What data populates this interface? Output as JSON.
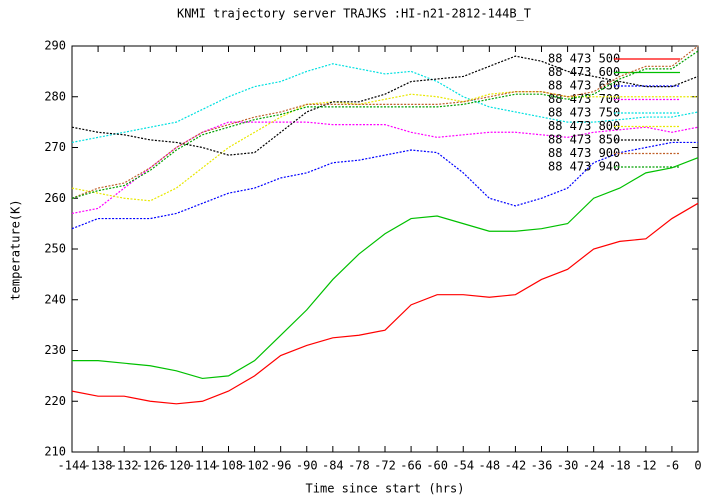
{
  "chart_data": {
    "type": "line",
    "title": "KNMI trajectory server TRAJKS :HI-n21-2812-144B_T",
    "x_label": "Time since start (hrs)",
    "y_label": "temperature(K)",
    "x": [
      -144,
      -138,
      -132,
      -126,
      -120,
      -114,
      -108,
      -102,
      -96,
      -90,
      -84,
      -78,
      -72,
      -66,
      -60,
      -54,
      -48,
      -42,
      -36,
      -30,
      -24,
      -18,
      -12,
      -6,
      0
    ],
    "xlim": [
      -144,
      0
    ],
    "xticks": [
      -144,
      -138,
      -132,
      -126,
      -120,
      -114,
      -108,
      -102,
      -96,
      -90,
      -84,
      -78,
      -72,
      -66,
      -60,
      -54,
      -48,
      -42,
      -36,
      -30,
      -24,
      -18,
      -12,
      -6,
      0
    ],
    "ylim": [
      210,
      290
    ],
    "yticks": [
      210,
      220,
      230,
      240,
      250,
      260,
      270,
      280,
      290
    ],
    "grid": false,
    "legend": "top-right",
    "series": [
      {
        "name": "88 473 500",
        "color": "#ff0000",
        "values": [
          222,
          221,
          221,
          220,
          219.5,
          220,
          222,
          225,
          229,
          231,
          232.5,
          233,
          234,
          239,
          241,
          241,
          240.5,
          241,
          244,
          246,
          250,
          251.5,
          252,
          256,
          259
        ]
      },
      {
        "name": "88 473 600",
        "color": "#00c000",
        "values": [
          228,
          228,
          227.5,
          227,
          226,
          224.5,
          225,
          228,
          233,
          238,
          244,
          249,
          253,
          256,
          256.5,
          255,
          253.5,
          253.5,
          254,
          255,
          260,
          262,
          265,
          266,
          268
        ]
      },
      {
        "name": "88 473 650",
        "color": "#0000ff",
        "values": [
          254,
          256,
          256,
          256,
          257,
          259,
          261,
          262,
          264,
          265,
          267,
          267.5,
          268.5,
          269.5,
          269,
          265,
          260,
          258.5,
          260,
          262,
          267,
          269,
          270,
          271,
          271
        ]
      },
      {
        "name": "88 473 700",
        "color": "#ff00ff",
        "values": [
          257,
          258,
          262,
          266,
          270,
          273,
          275,
          275,
          275,
          275,
          274.5,
          274.5,
          274.5,
          273,
          272,
          272.5,
          273,
          273,
          272.5,
          272,
          273,
          273.5,
          274,
          273,
          274
        ]
      },
      {
        "name": "88 473 750",
        "color": "#00e0e0",
        "values": [
          271,
          272,
          273,
          274,
          275,
          277.5,
          280,
          282,
          283,
          285,
          286.5,
          285.5,
          284.5,
          285,
          283,
          280,
          278,
          277,
          276,
          275,
          275,
          275.5,
          276,
          276,
          277
        ]
      },
      {
        "name": "88 473 800",
        "color": "#e8e800",
        "values": [
          262,
          261,
          260,
          259.5,
          262,
          266,
          270,
          273,
          276,
          278.5,
          279,
          278.5,
          279.5,
          280.5,
          280,
          279,
          280.5,
          281,
          281,
          280,
          280,
          280,
          280,
          280,
          280
        ]
      },
      {
        "name": "88 473 850",
        "color": "#000000",
        "values": [
          274,
          273,
          272.5,
          271.5,
          271,
          270,
          268.5,
          269,
          273,
          277,
          279,
          279,
          280.5,
          283,
          283.5,
          284,
          286,
          288,
          287,
          285,
          284,
          283,
          282,
          282,
          284
        ]
      },
      {
        "name": "88 473 900",
        "color": "#c0602a",
        "values": [
          260,
          262,
          263,
          266,
          270,
          273,
          274.5,
          276,
          277,
          278.5,
          278.5,
          278.5,
          278.5,
          278.5,
          278.5,
          279,
          280,
          281,
          281,
          280,
          281,
          284,
          286,
          286,
          290
        ]
      },
      {
        "name": "88 473 940",
        "color": "#00a000",
        "values": [
          260,
          261.5,
          262.5,
          265.5,
          269.5,
          272.5,
          274,
          275.5,
          276.5,
          278,
          278,
          278,
          278,
          278,
          278,
          278.5,
          279.5,
          280.5,
          280.5,
          279.5,
          280.5,
          283.5,
          285.5,
          285.5,
          289
        ]
      }
    ]
  }
}
